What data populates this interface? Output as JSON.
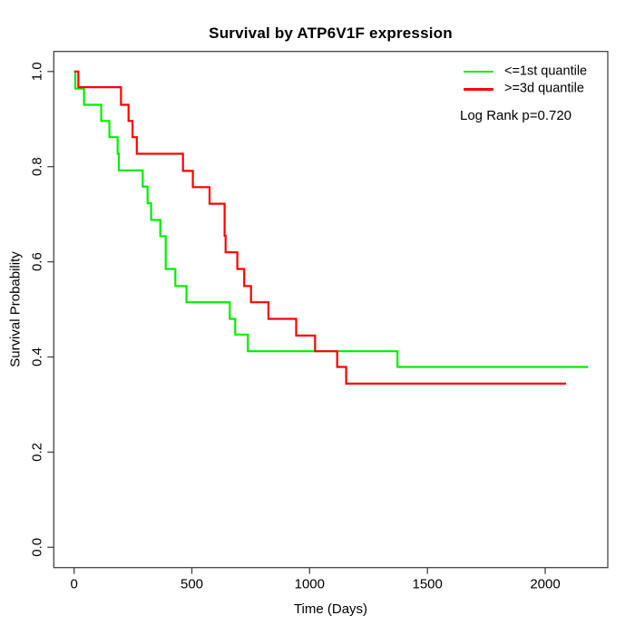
{
  "title": "Survival by ATP6V1F expression",
  "axes": {
    "xlabel": "Time (Days)",
    "ylabel": "Survival Probability"
  },
  "legend": {
    "items": [
      {
        "label": "<=1st quantile",
        "color": "#00EE00"
      },
      {
        "label": ">=3d quantile",
        "color": "#FF0000"
      }
    ],
    "note": "Log Rank p=0.720"
  },
  "chart_data": {
    "type": "line",
    "subtype": "kaplan-meier-step",
    "title": "Survival by ATP6V1F expression",
    "xlabel": "Time (Days)",
    "ylabel": "Survival Probability",
    "xlim": [
      0,
      2266
    ],
    "ylim": [
      0,
      1.0
    ],
    "xticks": [
      0,
      500,
      1000,
      1500,
      2000
    ],
    "yticks": [
      "0.0",
      "0.2",
      "0.4",
      "0.6",
      "0.8",
      "1.0"
    ],
    "grid": false,
    "legend_position": "top-right",
    "annotation": "Log Rank p=0.720",
    "series": [
      {
        "name": "<=1st quantile",
        "color": "#00EE00",
        "end_time": 2182,
        "points": [
          [
            0,
            1.0
          ],
          [
            5,
            0.964
          ],
          [
            42,
            0.93
          ],
          [
            115,
            0.896
          ],
          [
            150,
            0.862
          ],
          [
            185,
            0.827
          ],
          [
            190,
            0.792
          ],
          [
            291,
            0.758
          ],
          [
            312,
            0.723
          ],
          [
            327,
            0.688
          ],
          [
            366,
            0.654
          ],
          [
            389,
            0.585
          ],
          [
            430,
            0.549
          ],
          [
            477,
            0.515
          ],
          [
            661,
            0.48
          ],
          [
            684,
            0.447
          ],
          [
            738,
            0.412
          ],
          [
            1373,
            0.379
          ]
        ]
      },
      {
        "name": ">=3d quantile",
        "color": "#FF0000",
        "end_time": 2089,
        "points": [
          [
            0,
            1.0
          ],
          [
            18,
            0.967
          ],
          [
            199,
            0.93
          ],
          [
            231,
            0.896
          ],
          [
            248,
            0.862
          ],
          [
            266,
            0.827
          ],
          [
            462,
            0.791
          ],
          [
            504,
            0.757
          ],
          [
            575,
            0.722
          ],
          [
            639,
            0.655
          ],
          [
            643,
            0.62
          ],
          [
            693,
            0.585
          ],
          [
            722,
            0.549
          ],
          [
            751,
            0.515
          ],
          [
            825,
            0.48
          ],
          [
            943,
            0.445
          ],
          [
            1023,
            0.412
          ],
          [
            1117,
            0.379
          ],
          [
            1155,
            0.344
          ]
        ]
      }
    ]
  }
}
